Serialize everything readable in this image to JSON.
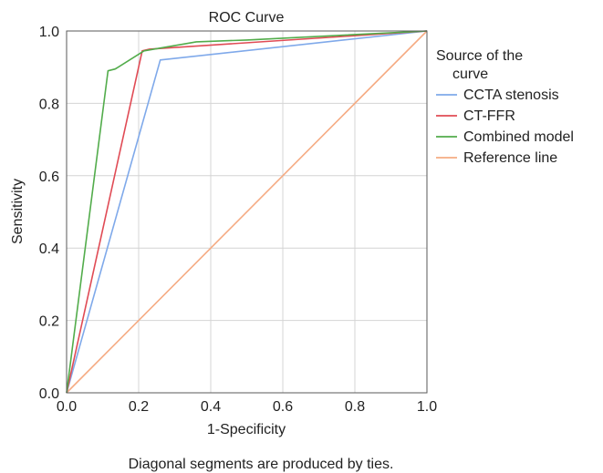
{
  "chart_data": {
    "type": "line",
    "title": "ROC Curve",
    "xlabel": "1-Specificity",
    "ylabel": "Sensitivity",
    "xlim": [
      0,
      1
    ],
    "ylim": [
      0,
      1
    ],
    "xticks": [
      "0.0",
      "0.2",
      "0.4",
      "0.6",
      "0.8",
      "1.0"
    ],
    "yticks": [
      "0.0",
      "0.2",
      "0.4",
      "0.6",
      "0.8",
      "1.0"
    ],
    "grid": true,
    "legend_title_lines": [
      "Source of the",
      "curve"
    ],
    "legend_position": "right",
    "footnote": "Diagonal segments are produced by ties.",
    "series": [
      {
        "name": "CCTA stenosis",
        "color": "#7fa9ea",
        "points": [
          [
            0,
            0
          ],
          [
            0.26,
            0.92
          ],
          [
            1,
            1
          ]
        ]
      },
      {
        "name": "CT-FFR",
        "color": "#e04b55",
        "points": [
          [
            0,
            0
          ],
          [
            0.21,
            0.945
          ],
          [
            0.23,
            0.95
          ],
          [
            1,
            1
          ]
        ]
      },
      {
        "name": "Combined model",
        "color": "#52ac4b",
        "points": [
          [
            0,
            0
          ],
          [
            0.115,
            0.89
          ],
          [
            0.135,
            0.895
          ],
          [
            0.215,
            0.945
          ],
          [
            0.36,
            0.97
          ],
          [
            0.5,
            0.975
          ],
          [
            0.6,
            0.98
          ],
          [
            1,
            1
          ]
        ]
      },
      {
        "name": "Reference line",
        "color": "#f5ab83",
        "points": [
          [
            0,
            0
          ],
          [
            1,
            1
          ]
        ]
      }
    ]
  }
}
